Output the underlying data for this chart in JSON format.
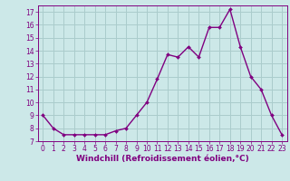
{
  "x": [
    0,
    1,
    2,
    3,
    4,
    5,
    6,
    7,
    8,
    9,
    10,
    11,
    12,
    13,
    14,
    15,
    16,
    17,
    18,
    19,
    20,
    21,
    22,
    23
  ],
  "y": [
    9.0,
    8.0,
    7.5,
    7.5,
    7.5,
    7.5,
    7.5,
    7.8,
    8.0,
    9.0,
    10.0,
    11.8,
    13.7,
    13.5,
    14.3,
    13.5,
    15.8,
    15.8,
    17.2,
    14.3,
    12.0,
    11.0,
    9.0,
    7.5
  ],
  "line_color": "#800080",
  "marker_color": "#800080",
  "bg_color": "#cce8e8",
  "grid_color": "#aacccc",
  "xlabel": "Windchill (Refroidissement éolien,°C)",
  "xlabel_color": "#800080",
  "tick_color": "#800080",
  "ylim": [
    7,
    17.5
  ],
  "yticks": [
    7,
    8,
    9,
    10,
    11,
    12,
    13,
    14,
    15,
    16,
    17
  ],
  "xticks": [
    0,
    1,
    2,
    3,
    4,
    5,
    6,
    7,
    8,
    9,
    10,
    11,
    12,
    13,
    14,
    15,
    16,
    17,
    18,
    19,
    20,
    21,
    22,
    23
  ],
  "tick_fontsize": 5.5,
  "xlabel_fontsize": 6.5
}
